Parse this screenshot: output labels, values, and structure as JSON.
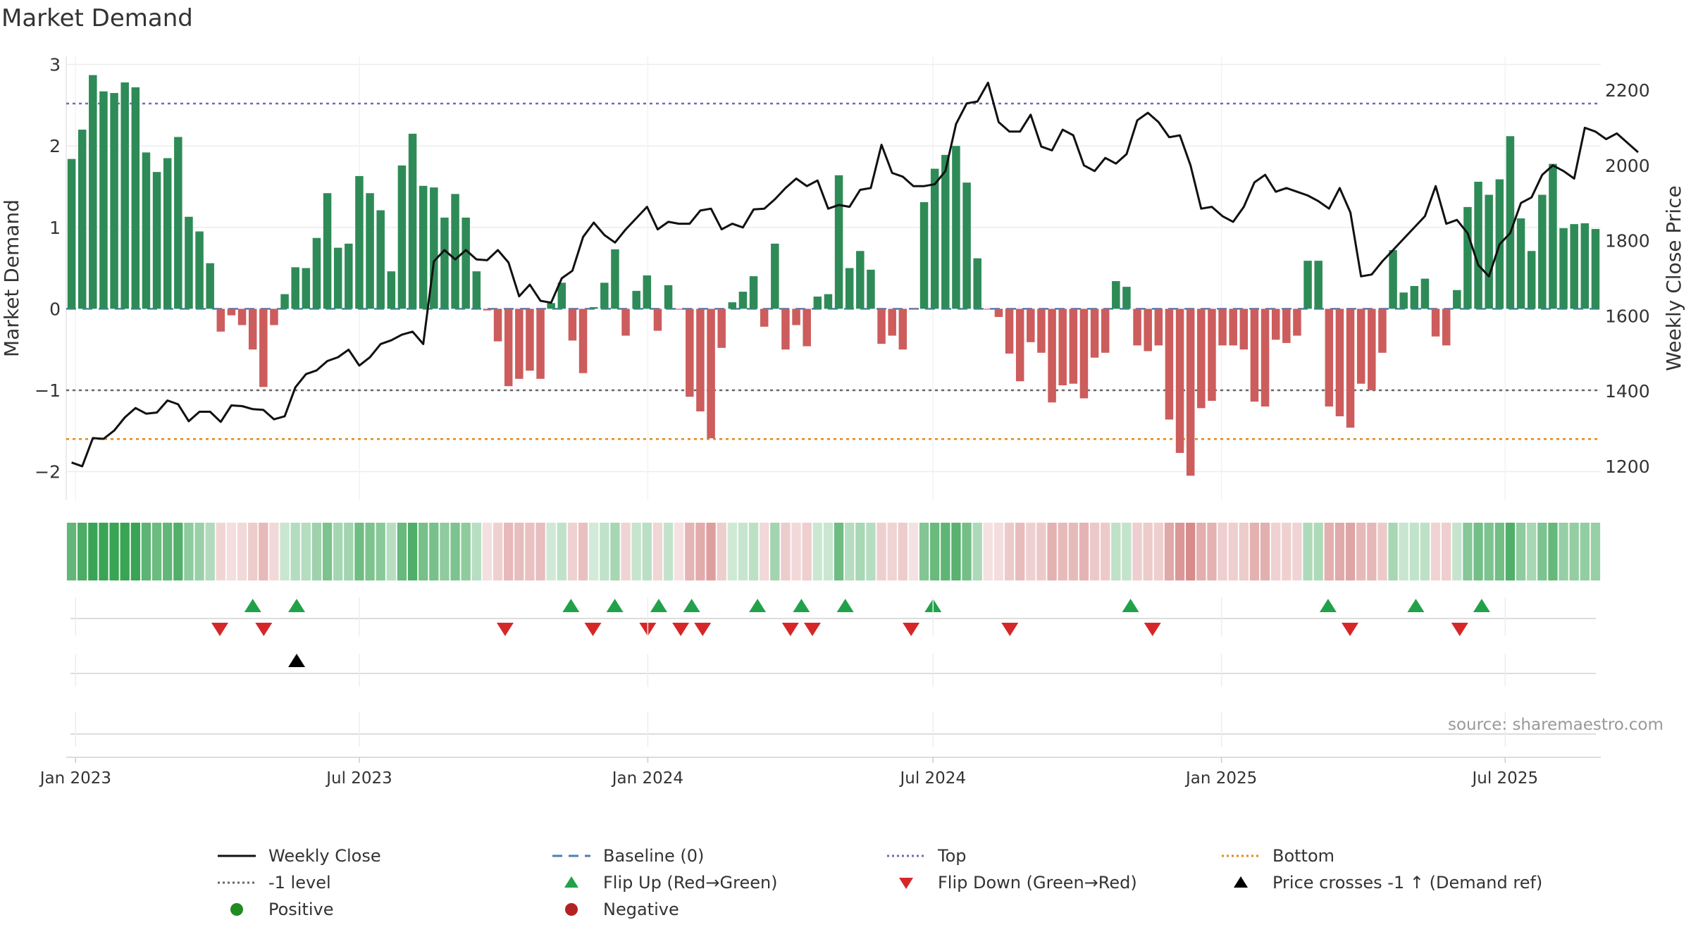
{
  "chart_data": {
    "type": "bar",
    "title": "Market Demand",
    "ylabel": "Market Demand",
    "y2label": "Weekly Close Price",
    "ylim": [
      -2.35,
      3.1
    ],
    "y2lim": [
      1110,
      2290
    ],
    "yticks": [
      -2,
      -1,
      0,
      1,
      2,
      3
    ],
    "y2ticks": [
      1200,
      1400,
      1600,
      1800,
      2000,
      2200
    ],
    "start_date": "2022-12-26",
    "end_date": "2025-08-31",
    "x_ticks": [
      {
        "label": "Jan 2023",
        "date": "2023-01-01"
      },
      {
        "label": "Jul 2023",
        "date": "2023-07-01"
      },
      {
        "label": "Jan 2024",
        "date": "2024-01-01"
      },
      {
        "label": "Jul 2024",
        "date": "2024-07-01"
      },
      {
        "label": "Jan 2025",
        "date": "2025-01-01"
      },
      {
        "label": "Jul 2025",
        "date": "2025-07-01"
      }
    ],
    "levels": {
      "top": 2.52,
      "bottom": -1.6,
      "minus_one": -1.0,
      "baseline": 0
    },
    "demand": [
      1.84,
      2.2,
      2.87,
      2.67,
      2.65,
      2.78,
      2.72,
      1.92,
      1.68,
      1.85,
      2.11,
      1.13,
      0.95,
      0.56,
      -0.28,
      -0.08,
      -0.2,
      -0.5,
      -0.96,
      -0.2,
      0.18,
      0.51,
      0.5,
      0.87,
      1.42,
      0.75,
      0.8,
      1.63,
      1.42,
      1.21,
      0.46,
      1.76,
      2.15,
      1.51,
      1.49,
      1.12,
      1.41,
      1.12,
      0.46,
      -0.02,
      -0.4,
      -0.95,
      -0.86,
      -0.76,
      -0.86,
      0.07,
      0.32,
      -0.39,
      -0.79,
      0.02,
      0.32,
      0.73,
      -0.33,
      0.22,
      0.41,
      -0.27,
      0.29,
      -0.01,
      -1.08,
      -1.26,
      -1.59,
      -0.48,
      0.08,
      0.21,
      0.4,
      -0.22,
      0.8,
      -0.5,
      -0.2,
      -0.46,
      0.15,
      0.18,
      1.64,
      0.5,
      0.71,
      0.48,
      -0.43,
      -0.33,
      -0.5,
      -0.01,
      1.31,
      1.72,
      1.89,
      2.0,
      1.55,
      0.62,
      -0.01,
      -0.1,
      -0.55,
      -0.89,
      -0.41,
      -0.54,
      -1.15,
      -0.94,
      -0.92,
      -1.1,
      -0.6,
      -0.54,
      0.34,
      0.27,
      -0.45,
      -0.52,
      -0.45,
      -1.36,
      -1.77,
      -2.05,
      -1.22,
      -1.13,
      -0.45,
      -0.45,
      -0.5,
      -1.14,
      -1.2,
      -0.38,
      -0.42,
      -0.33,
      0.59,
      0.59,
      -1.2,
      -1.32,
      -1.46,
      -0.92,
      -1.0,
      -0.54,
      0.72,
      0.2,
      0.28,
      0.37,
      -0.34,
      -0.45,
      0.23,
      1.25,
      1.56,
      1.4,
      1.59,
      2.12,
      1.11,
      0.71,
      1.4,
      1.78,
      0.99,
      1.04,
      1.05,
      0.98
    ],
    "close": [
      1210,
      1200,
      1275,
      1273,
      1295,
      1330,
      1355,
      1340,
      1343,
      1375,
      1365,
      1320,
      1345,
      1345,
      1318,
      1362,
      1360,
      1352,
      1350,
      1325,
      1333,
      1410,
      1445,
      1455,
      1480,
      1490,
      1510,
      1468,
      1490,
      1525,
      1535,
      1550,
      1558,
      1525,
      1745,
      1775,
      1750,
      1775,
      1750,
      1748,
      1775,
      1742,
      1652,
      1683,
      1640,
      1635,
      1700,
      1720,
      1810,
      1848,
      1815,
      1795,
      1830,
      1860,
      1890,
      1830,
      1850,
      1845,
      1845,
      1880,
      1885,
      1830,
      1845,
      1835,
      1883,
      1885,
      1910,
      1940,
      1965,
      1945,
      1960,
      1885,
      1895,
      1890,
      1935,
      1940,
      2055,
      1980,
      1970,
      1945,
      1945,
      1950,
      1985,
      2110,
      2165,
      2170,
      2220,
      2115,
      2090,
      2090,
      2135,
      2050,
      2040,
      2095,
      2080,
      2000,
      1985,
      2020,
      2005,
      2030,
      2120,
      2140,
      2115,
      2075,
      2080,
      2000,
      1885,
      1890,
      1865,
      1850,
      1890,
      1955,
      1975,
      1930,
      1940,
      1930,
      1920,
      1905,
      1885,
      1940,
      1875,
      1705,
      1710,
      1745,
      1775,
      1805,
      1835,
      1865,
      1945,
      1845,
      1855,
      1820,
      1735,
      1705,
      1790,
      1820,
      1900,
      1915,
      1975,
      2000,
      1985,
      1965,
      2100,
      2090,
      2070,
      2085,
      2060,
      2035
    ],
    "flips_up": [
      "2023-04-24",
      "2023-05-22",
      "2023-11-13",
      "2023-12-11",
      "2024-01-08",
      "2024-01-29",
      "2024-03-11",
      "2024-04-08",
      "2024-05-06",
      "2024-07-01",
      "2024-11-04",
      "2025-03-10",
      "2025-05-05",
      "2025-06-16"
    ],
    "flips_down": [
      "2023-04-03",
      "2023-05-01",
      "2023-10-02",
      "2023-11-27",
      "2024-01-01",
      "2024-01-22",
      "2024-02-05",
      "2024-04-01",
      "2024-04-15",
      "2024-06-17",
      "2024-08-19",
      "2024-11-18",
      "2025-03-24",
      "2025-06-02"
    ],
    "price_crosses": [
      "2023-05-22"
    ]
  },
  "source_text": "source: sharemaestro.com",
  "legend": {
    "weekly_close": "Weekly Close",
    "baseline": "Baseline (0)",
    "top": "Top",
    "bottom": "Bottom",
    "minus_one": "-1 level",
    "flip_up": "Flip Up (Red→Green)",
    "flip_down": "Flip Down (Green→Red)",
    "price_cross": "Price crosses -1 ↑ (Demand ref)",
    "positive": "Positive",
    "negative": "Negative"
  },
  "colors": {
    "bar_pos": "#2e8b57",
    "bar_neg": "#cd5c5c",
    "close_line": "#111111",
    "baseline": "#4a7fb5",
    "top": "#6b6bb8",
    "bottom": "#e08a1e",
    "minus_one": "#666666",
    "flip_up": "#21a24a",
    "flip_down": "#d62728",
    "positive_dot": "#228b22",
    "negative_dot": "#b22222"
  }
}
